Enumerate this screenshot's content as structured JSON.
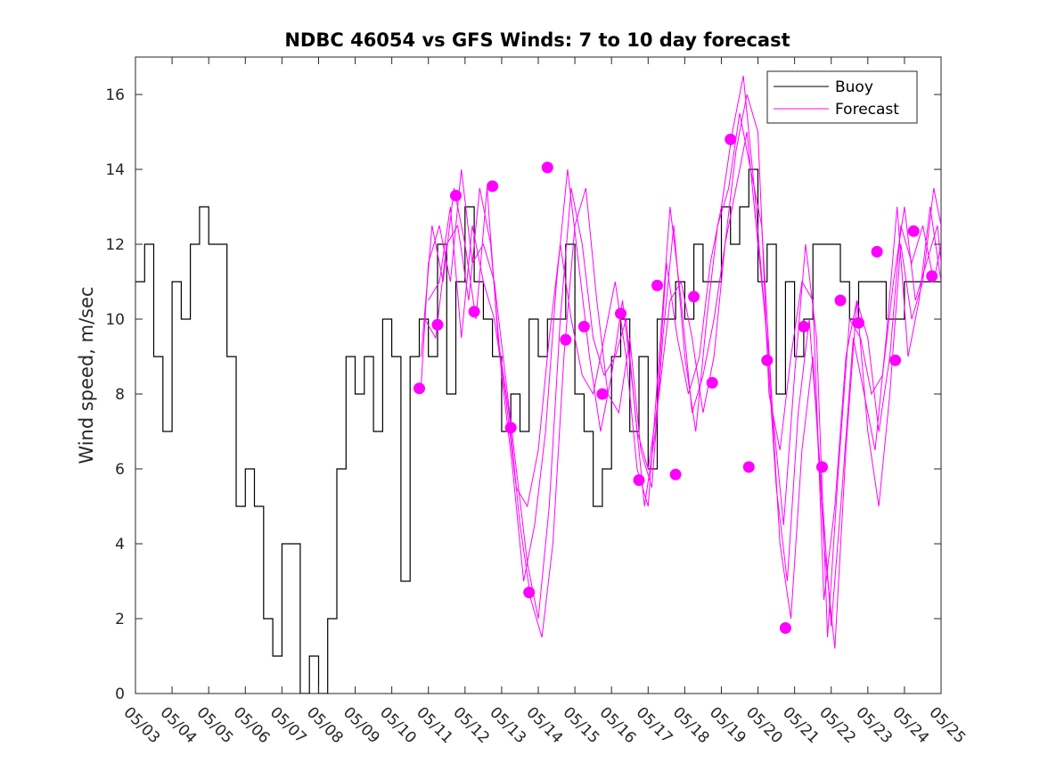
{
  "chart_data": {
    "type": "line",
    "title": "NDBC 46054 vs GFS Winds: 7 to 10 day forecast",
    "xlabel": "",
    "ylabel": "Wind speed, m/sec",
    "x_range_days": [
      0,
      22
    ],
    "ylim": [
      0,
      17
    ],
    "yticks": [
      0,
      2,
      4,
      6,
      8,
      10,
      12,
      14,
      16
    ],
    "x_tick_labels": [
      "05/03",
      "05/04",
      "05/05",
      "05/06",
      "05/07",
      "05/08",
      "05/09",
      "05/10",
      "05/11",
      "05/12",
      "05/13",
      "05/14",
      "05/15",
      "05/16",
      "05/17",
      "05/18",
      "05/19",
      "05/20",
      "05/21",
      "05/22",
      "05/23",
      "05/24",
      "05/25"
    ],
    "grid": false,
    "legend": {
      "position": "top-right",
      "entries": [
        {
          "label": "Buoy",
          "color": "#000000"
        },
        {
          "label": "Forecast",
          "color": "#ff00ff"
        }
      ]
    },
    "colors": {
      "buoy": "#000000",
      "forecast": "#ff00ff"
    },
    "buoy_series": {
      "name": "Buoy",
      "x_days": [
        0.0,
        0.25,
        0.5,
        0.75,
        1.0,
        1.25,
        1.5,
        1.75,
        2.0,
        2.25,
        2.5,
        2.75,
        3.0,
        3.25,
        3.5,
        3.75,
        4.0,
        4.25,
        4.5,
        4.75,
        5.0,
        5.25,
        5.5,
        5.75,
        6.0,
        6.25,
        6.5,
        6.75,
        7.0,
        7.25,
        7.5,
        7.75,
        8.0,
        8.25,
        8.5,
        8.75,
        9.0,
        9.25,
        9.5,
        9.75,
        10.0,
        10.25,
        10.5,
        10.75,
        11.0,
        11.25,
        11.5,
        11.75,
        12.0,
        12.25,
        12.5,
        12.75,
        13.0,
        13.25,
        13.5,
        13.75,
        14.0,
        14.25,
        14.5,
        14.75,
        15.0,
        15.25,
        15.5,
        15.75,
        16.0,
        16.25,
        16.5,
        16.75,
        17.0,
        17.25,
        17.5,
        17.75,
        18.0,
        18.25,
        18.5,
        18.75,
        19.0,
        19.25,
        19.5,
        19.75,
        20.0,
        20.25,
        20.5,
        20.75,
        21.0,
        21.25,
        21.5,
        21.75,
        22.0
      ],
      "values": [
        11,
        12,
        9,
        7,
        11,
        10,
        12,
        13,
        12,
        12,
        9,
        5,
        6,
        5,
        2,
        1,
        4,
        4,
        0,
        1,
        0,
        2,
        6,
        9,
        8,
        9,
        7,
        10,
        9,
        3,
        9,
        10,
        9,
        12,
        8,
        11,
        13,
        11,
        10,
        9,
        7,
        8,
        7,
        10,
        9,
        10,
        10,
        12,
        8,
        7,
        5,
        6,
        9,
        10,
        7,
        9,
        6,
        10,
        10,
        11,
        10,
        12,
        11,
        11,
        13,
        12,
        13,
        14,
        11,
        12,
        8,
        11,
        9,
        10,
        12,
        12,
        12,
        11,
        10,
        11,
        11,
        11,
        10,
        10,
        11,
        11,
        11,
        11,
        11
      ]
    },
    "forecast_series": [
      {
        "x_days": [
          7.8,
          8.0,
          8.3,
          8.6,
          8.9,
          9.2,
          9.5,
          9.8,
          10.1,
          10.4,
          10.7,
          11.0,
          11.3,
          11.6,
          11.9,
          12.2,
          12.5,
          12.8,
          13.1,
          13.4,
          13.7,
          14.0,
          14.3,
          14.6,
          14.9,
          15.2,
          15.5,
          15.8,
          16.1,
          16.4,
          16.7,
          17.0,
          17.3,
          17.6,
          17.9,
          18.2,
          18.5,
          18.8,
          19.1,
          19.4,
          19.7,
          20.0,
          20.3,
          20.6,
          20.9,
          21.2,
          21.5,
          21.8,
          22.0
        ],
        "values": [
          8.2,
          11.5,
          12.5,
          11.0,
          14.0,
          11.5,
          12.0,
          11.0,
          8.5,
          6.0,
          3.5,
          2.0,
          5.0,
          10.0,
          13.5,
          12.0,
          9.5,
          8.5,
          9.0,
          10.0,
          7.0,
          6.0,
          8.0,
          10.5,
          11.0,
          9.5,
          7.5,
          9.0,
          12.0,
          14.5,
          16.0,
          15.0,
          8.0,
          6.5,
          9.0,
          11.0,
          10.5,
          2.5,
          5.0,
          9.0,
          10.5,
          9.5,
          7.0,
          9.0,
          12.5,
          11.5,
          12.5,
          11.0,
          12.0
        ]
      },
      {
        "x_days": [
          7.8,
          8.1,
          8.4,
          8.7,
          9.0,
          9.3,
          9.6,
          9.9,
          10.2,
          10.5,
          10.8,
          11.1,
          11.4,
          11.7,
          12.0,
          12.3,
          12.6,
          12.9,
          13.2,
          13.5,
          13.8,
          14.1,
          14.4,
          14.7,
          15.0,
          15.3,
          15.6,
          15.9,
          16.2,
          16.5,
          16.8,
          17.1,
          17.4,
          17.7,
          18.0,
          18.3,
          18.6,
          18.9,
          19.2,
          19.5,
          19.8,
          20.1,
          20.4,
          20.7,
          21.0,
          21.3,
          21.6,
          21.9,
          22.0
        ],
        "values": [
          9.0,
          12.5,
          11.0,
          13.5,
          12.0,
          10.0,
          13.5,
          9.5,
          7.5,
          4.5,
          2.5,
          1.5,
          4.0,
          9.0,
          12.5,
          13.5,
          10.5,
          8.0,
          7.5,
          9.5,
          6.5,
          5.5,
          9.5,
          12.5,
          9.0,
          7.0,
          10.0,
          12.5,
          13.5,
          15.5,
          14.0,
          12.5,
          7.5,
          4.5,
          8.5,
          12.0,
          9.5,
          1.5,
          6.0,
          10.0,
          9.5,
          8.0,
          8.5,
          11.0,
          13.0,
          10.5,
          11.5,
          12.5,
          11.5
        ]
      },
      {
        "x_days": [
          7.9,
          8.2,
          8.5,
          8.8,
          9.1,
          9.4,
          9.7,
          10.0,
          10.3,
          10.6,
          10.9,
          11.2,
          11.5,
          11.8,
          12.1,
          12.4,
          12.7,
          13.0,
          13.3,
          13.6,
          13.9,
          14.2,
          14.5,
          14.8,
          15.1,
          15.4,
          15.7,
          16.0,
          16.3,
          16.6,
          16.9,
          17.2,
          17.5,
          17.8,
          18.1,
          18.4,
          18.7,
          19.0,
          19.3,
          19.6,
          19.9,
          20.2,
          20.5,
          20.8,
          21.1,
          21.4,
          21.7,
          22.0
        ],
        "values": [
          10.0,
          9.5,
          12.0,
          12.5,
          10.5,
          13.5,
          12.0,
          8.5,
          6.0,
          3.0,
          4.5,
          7.0,
          11.0,
          14.0,
          11.5,
          9.0,
          7.0,
          8.5,
          10.5,
          8.0,
          5.0,
          7.0,
          11.5,
          9.5,
          8.0,
          9.0,
          11.5,
          13.0,
          15.0,
          16.5,
          13.5,
          10.0,
          5.5,
          3.0,
          7.5,
          10.0,
          6.0,
          1.8,
          5.5,
          9.5,
          8.0,
          6.5,
          9.5,
          13.0,
          9.0,
          10.5,
          13.0,
          11.0
        ]
      },
      {
        "x_days": [
          8.0,
          8.3,
          8.6,
          8.9,
          9.2,
          9.5,
          9.8,
          10.1,
          10.4,
          10.7,
          11.0,
          11.3,
          11.6,
          11.9,
          12.2,
          12.5,
          12.8,
          13.1,
          13.4,
          13.7,
          14.0,
          14.3,
          14.6,
          14.9,
          15.2,
          15.5,
          15.8,
          16.1,
          16.4,
          16.7,
          17.0,
          17.3,
          17.6,
          17.9,
          18.2,
          18.5,
          18.8,
          19.1,
          19.4,
          19.7,
          20.0,
          20.3,
          20.6,
          20.9,
          21.2,
          21.5,
          21.8,
          22.0
        ],
        "values": [
          10.5,
          11.0,
          13.0,
          9.5,
          12.5,
          11.0,
          10.0,
          8.0,
          5.5,
          5.0,
          6.5,
          9.5,
          12.0,
          10.0,
          8.5,
          8.0,
          9.5,
          11.0,
          9.0,
          6.0,
          5.0,
          9.0,
          13.0,
          10.5,
          7.5,
          8.5,
          10.0,
          12.0,
          13.5,
          15.0,
          12.0,
          9.0,
          4.0,
          2.0,
          6.5,
          9.0,
          4.0,
          1.2,
          6.5,
          10.5,
          7.0,
          5.0,
          8.0,
          12.0,
          10.0,
          11.0,
          13.5,
          12.5
        ]
      }
    ],
    "forecast_markers": {
      "x_days": [
        7.75,
        8.25,
        8.75,
        9.25,
        9.75,
        10.25,
        10.75,
        11.25,
        11.75,
        12.25,
        12.75,
        13.25,
        13.75,
        14.25,
        14.75,
        15.25,
        15.75,
        16.25,
        16.75,
        17.25,
        17.75,
        18.25,
        18.75,
        19.25,
        19.75,
        20.25,
        20.75,
        21.25,
        21.75
      ],
      "values": [
        8.15,
        9.85,
        13.3,
        10.2,
        13.55,
        7.1,
        2.7,
        14.05,
        9.45,
        9.8,
        8.0,
        10.15,
        5.7,
        10.9,
        5.85,
        10.6,
        8.3,
        14.8,
        6.05,
        8.9,
        1.75,
        9.8,
        6.05,
        10.5,
        9.9,
        11.8,
        8.9,
        12.35,
        11.15
      ]
    }
  }
}
